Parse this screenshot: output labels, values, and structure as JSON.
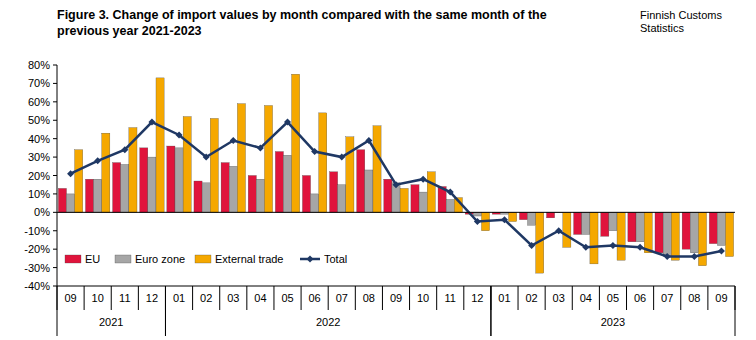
{
  "chart_data": {
    "type": "bar",
    "title": "Figure 3. Change of import values by month compared with the same month of the previous year 2021-2023",
    "source": "Finnish Customs Statistics",
    "categories": [
      "09",
      "10",
      "11",
      "12",
      "01",
      "02",
      "03",
      "04",
      "05",
      "06",
      "07",
      "08",
      "09",
      "10",
      "11",
      "12",
      "01",
      "02",
      "03",
      "04",
      "05",
      "06",
      "07",
      "08",
      "09"
    ],
    "groups": [
      {
        "label": "2021",
        "count": 4
      },
      {
        "label": "2022",
        "count": 12
      },
      {
        "label": "2023",
        "count": 9
      }
    ],
    "series": [
      {
        "name": "EU",
        "color": "#e0143c",
        "type": "bar",
        "values": [
          13,
          18,
          27,
          35,
          36,
          17,
          27,
          20,
          33,
          20,
          22,
          34,
          18,
          15,
          14,
          -1,
          -1,
          -4,
          -3,
          -12,
          -13,
          -16,
          -22,
          -20,
          -17
        ]
      },
      {
        "name": "Euro zone",
        "color": "#a6a6a6",
        "type": "bar",
        "values": [
          10,
          18,
          26,
          30,
          35,
          16,
          25,
          18,
          31,
          10,
          15,
          23,
          16,
          11,
          7,
          -2,
          -1,
          -7,
          0,
          -12,
          -10,
          -16,
          -24,
          -22,
          -18
        ]
      },
      {
        "name": "External trade",
        "color": "#f5a800",
        "type": "bar",
        "values": [
          34,
          43,
          46,
          73,
          52,
          51,
          59,
          58,
          75,
          54,
          41,
          47,
          13,
          22,
          8,
          -10,
          -5,
          -33,
          -19,
          -28,
          -26,
          -22,
          -26,
          -29,
          -24
        ]
      },
      {
        "name": "Total",
        "color": "#1f3864",
        "type": "line",
        "marker": "diamond",
        "line_style": "solid",
        "values": [
          21,
          28,
          34,
          49,
          42,
          30,
          39,
          35,
          49,
          33,
          30,
          39,
          15,
          18,
          11,
          -5,
          -4,
          -18,
          -10,
          -19,
          -18,
          -19,
          -24,
          -24,
          -21
        ]
      }
    ],
    "ylim": [
      -40,
      80
    ],
    "yticks": [
      {
        "value": -40,
        "label": "-40%"
      },
      {
        "value": -30,
        "label": "-30%"
      },
      {
        "value": -20,
        "label": "-20%"
      },
      {
        "value": -10,
        "label": "-10%"
      },
      {
        "value": 0,
        "label": "0%"
      },
      {
        "value": 10,
        "label": "10%"
      },
      {
        "value": 20,
        "label": "20%"
      },
      {
        "value": 30,
        "label": "30%"
      },
      {
        "value": 40,
        "label": "40%"
      },
      {
        "value": 50,
        "label": "50%"
      },
      {
        "value": 60,
        "label": "60%"
      },
      {
        "value": 70,
        "label": "70%"
      },
      {
        "value": 80,
        "label": "80%"
      }
    ],
    "grid": false,
    "legend": "bottom-left"
  }
}
